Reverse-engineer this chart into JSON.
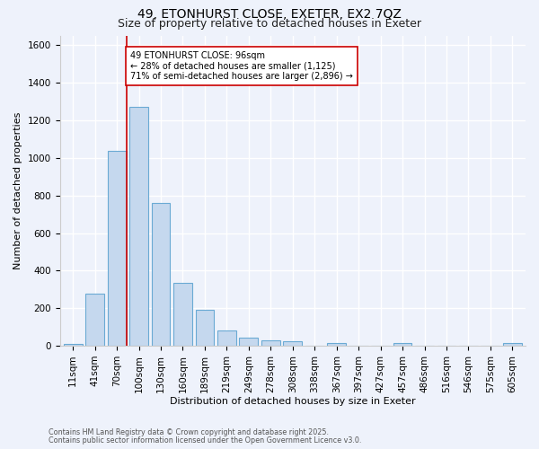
{
  "title1": "49, ETONHURST CLOSE, EXETER, EX2 7QZ",
  "title2": "Size of property relative to detached houses in Exeter",
  "xlabel": "Distribution of detached houses by size in Exeter",
  "ylabel": "Number of detached properties",
  "bar_color": "#c5d8ee",
  "bar_edge_color": "#6aaad4",
  "categories": [
    "11sqm",
    "41sqm",
    "70sqm",
    "100sqm",
    "130sqm",
    "160sqm",
    "189sqm",
    "219sqm",
    "249sqm",
    "278sqm",
    "308sqm",
    "338sqm",
    "367sqm",
    "397sqm",
    "427sqm",
    "457sqm",
    "486sqm",
    "516sqm",
    "546sqm",
    "575sqm",
    "605sqm"
  ],
  "values": [
    10,
    280,
    1040,
    1270,
    760,
    335,
    190,
    80,
    45,
    30,
    25,
    0,
    15,
    0,
    0,
    15,
    0,
    0,
    0,
    0,
    15
  ],
  "vline_color": "#cc0000",
  "annotation_line1": "49 ETONHURST CLOSE: 96sqm",
  "annotation_line2": "← 28% of detached houses are smaller (1,125)",
  "annotation_line3": "71% of semi-detached houses are larger (2,896) →",
  "annotation_box_color": "#ffffff",
  "annotation_box_edge": "#cc0000",
  "ylim": [
    0,
    1650
  ],
  "yticks": [
    0,
    200,
    400,
    600,
    800,
    1000,
    1200,
    1400,
    1600
  ],
  "footnote1": "Contains HM Land Registry data © Crown copyright and database right 2025.",
  "footnote2": "Contains public sector information licensed under the Open Government Licence v3.0.",
  "bg_color": "#eef2fb",
  "plot_bg_color": "#eef2fb",
  "grid_color": "#ffffff",
  "title_fontsize": 10,
  "subtitle_fontsize": 9,
  "axis_label_fontsize": 8,
  "tick_fontsize": 7.5,
  "footnote_fontsize": 5.8
}
